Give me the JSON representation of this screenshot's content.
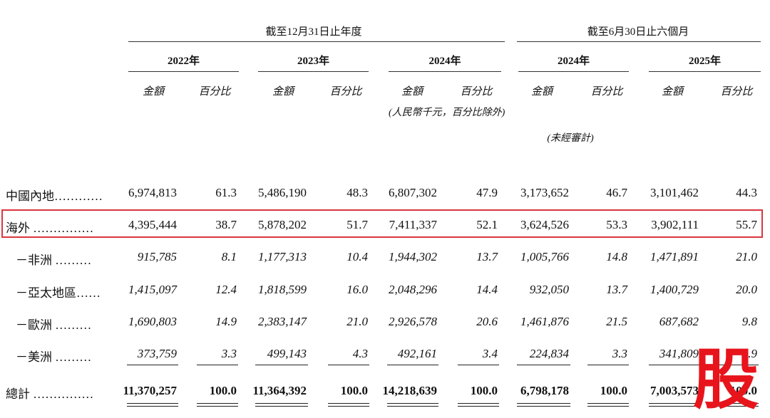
{
  "header": {
    "group_fy": "截至12月31日止年度",
    "group_6m": "截至6月30日止六個月",
    "years": [
      "2022年",
      "2023年",
      "2024年",
      "2024年",
      "2025年"
    ],
    "col_amount": "金額",
    "col_percent": "百分比",
    "unit_note": "(人民幣千元，百分比除外)",
    "unaudited_note": "(未經審計)"
  },
  "rows": [
    {
      "label": "中國內地…………",
      "values": [
        "6,974,813",
        "61.3",
        "5,486,190",
        "48.3",
        "6,807,302",
        "47.9",
        "3,173,652",
        "46.7",
        "3,101,462",
        "44.3"
      ]
    },
    {
      "label": "海外 ……………",
      "values": [
        "4,395,444",
        "38.7",
        "5,878,202",
        "51.7",
        "7,411,337",
        "52.1",
        "3,624,526",
        "53.3",
        "3,902,111",
        "55.7"
      ]
    },
    {
      "label": "－非洲 ………",
      "values": [
        "915,785",
        "8.1",
        "1,177,313",
        "10.4",
        "1,944,302",
        "13.7",
        "1,005,766",
        "14.8",
        "1,471,891",
        "21.0"
      ]
    },
    {
      "label": "－亞太地區……",
      "values": [
        "1,415,097",
        "12.4",
        "1,818,599",
        "16.0",
        "2,048,296",
        "14.4",
        "932,050",
        "13.7",
        "1,400,729",
        "20.0"
      ]
    },
    {
      "label": "－歐洲 ………",
      "values": [
        "1,690,803",
        "14.9",
        "2,383,147",
        "21.0",
        "2,926,578",
        "20.6",
        "1,461,876",
        "21.5",
        "687,682",
        "9.8"
      ]
    },
    {
      "label": "－美洲 ………",
      "values": [
        "373,759",
        "3.3",
        "499,143",
        "4.3",
        "492,161",
        "3.4",
        "224,834",
        "3.3",
        "341,809",
        "4.9"
      ]
    },
    {
      "label": "總計 ……………",
      "values": [
        "11,370,257",
        "100.0",
        "11,364,392",
        "100.0",
        "14,218,639",
        "100.0",
        "6,798,178",
        "100.0",
        "7,003,573",
        "100.0"
      ]
    }
  ],
  "watermark": "股",
  "colors": {
    "highlight": "#d9363e",
    "watermark": "#e8141c"
  }
}
